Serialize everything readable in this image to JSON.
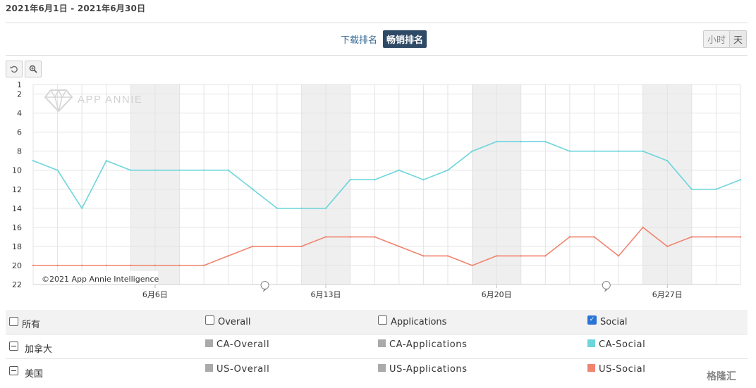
{
  "header": {
    "date_range": "2021年6月1日 - 2021年6月30日",
    "rank_types": [
      "下载排名",
      "畅销排名"
    ],
    "active_rank_type": "畅销排名",
    "granularity": [
      "小时",
      "天"
    ]
  },
  "toolbar": {
    "reset_icon": "reset-icon",
    "zoom_icon": "zoom-icon"
  },
  "watermark": "APP ANNIE",
  "copyright": "©2021 App Annie Intelligence",
  "chart_data": {
    "type": "line",
    "y_inverted": true,
    "ylim": [
      1,
      22
    ],
    "yticks": [
      1,
      2,
      4,
      6,
      8,
      10,
      12,
      14,
      16,
      18,
      20,
      22
    ],
    "x_days": [
      1,
      2,
      3,
      4,
      5,
      6,
      7,
      8,
      9,
      10,
      11,
      12,
      13,
      14,
      15,
      16,
      17,
      18,
      19,
      20,
      21,
      22,
      23,
      24,
      25,
      26,
      27,
      28,
      29,
      30
    ],
    "x_tick_labels": [
      {
        "day": 6,
        "label": "6月6日"
      },
      {
        "day": 13,
        "label": "6月13日"
      },
      {
        "day": 20,
        "label": "6月20日"
      },
      {
        "day": 27,
        "label": "6月27日"
      }
    ],
    "weekend_bands": [
      [
        5,
        7
      ],
      [
        12,
        14
      ],
      [
        19,
        21
      ],
      [
        26,
        28
      ]
    ],
    "series": [
      {
        "name": "CA-Social",
        "color": "#6dd5db",
        "values": [
          9,
          10,
          14,
          9,
          10,
          10,
          10,
          10,
          10,
          12,
          14,
          14,
          14,
          11,
          11,
          10,
          11,
          10,
          8,
          7,
          7,
          7,
          8,
          8,
          8,
          8,
          9,
          12,
          12,
          11
        ]
      },
      {
        "name": "US-Social",
        "color": "#f0846f",
        "values": [
          20,
          20,
          20,
          20,
          20,
          20,
          20,
          20,
          19,
          18,
          18,
          18,
          17,
          17,
          17,
          18,
          19,
          19,
          20,
          19,
          19,
          19,
          17,
          17,
          19,
          16,
          18,
          17,
          17,
          17
        ]
      }
    ]
  },
  "legend": {
    "header": [
      {
        "label": "所有",
        "checked": false
      },
      {
        "label": "Overall",
        "checked": false
      },
      {
        "label": "Applications",
        "checked": false
      },
      {
        "label": "Social",
        "checked": true
      }
    ],
    "rows": [
      {
        "country": "加拿大",
        "items": [
          {
            "label": "CA-Overall",
            "color": "#aaaaaa"
          },
          {
            "label": "CA-Applications",
            "color": "#aaaaaa"
          },
          {
            "label": "CA-Social",
            "color": "#6dd5db"
          }
        ]
      },
      {
        "country": "美国",
        "items": [
          {
            "label": "US-Overall",
            "color": "#aaaaaa"
          },
          {
            "label": "US-Applications",
            "color": "#aaaaaa"
          },
          {
            "label": "US-Social",
            "color": "#f0846f"
          }
        ]
      }
    ]
  },
  "corner_logo": "格隆汇"
}
